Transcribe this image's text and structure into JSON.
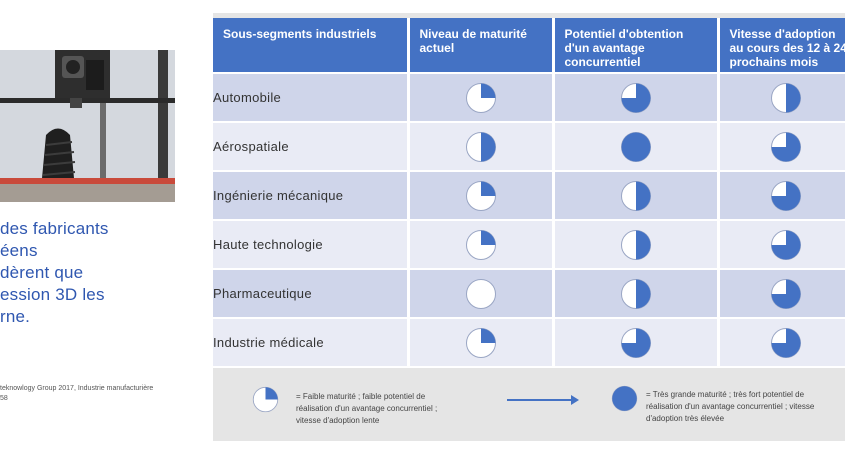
{
  "quote": {
    "lines": [
      "des fabricants",
      "éens",
      "dèrent que",
      "ession 3D les",
      "rne."
    ]
  },
  "source": {
    "lines": [
      "teknowlogy Group 2017, Industrie manufacturière",
      "58"
    ]
  },
  "table": {
    "headers": [
      {
        "lines": [
          "Sous-segments industriels"
        ]
      },
      {
        "lines": [
          "Niveau de maturité",
          "actuel"
        ]
      },
      {
        "lines": [
          "Potentiel d'obtention",
          "d'un avantage",
          "concurrentiel"
        ]
      },
      {
        "lines": [
          "Vitesse d'adoption",
          "au cours des 12 à 24",
          "prochains mois"
        ]
      }
    ],
    "rows": [
      {
        "label": "Automobile",
        "ratings": [
          0.25,
          0.75,
          0.5
        ]
      },
      {
        "label": "Aérospatiale",
        "ratings": [
          0.5,
          1.0,
          0.75
        ]
      },
      {
        "label": "Ingénierie mécanique",
        "ratings": [
          0.25,
          0.5,
          0.75
        ]
      },
      {
        "label": "Haute technologie",
        "ratings": [
          0.25,
          0.5,
          0.75
        ]
      },
      {
        "label": "Pharmaceutique",
        "ratings": [
          0.0,
          0.5,
          0.75
        ]
      },
      {
        "label": "Industrie médicale",
        "ratings": [
          0.25,
          0.75,
          0.75
        ]
      }
    ]
  },
  "legend": {
    "low": {
      "rating": 0.25,
      "lines": [
        "= Faible maturité ; faible potentiel de",
        "réalisation d'un avantage concurrentiel ;",
        "vitesse d'adoption lente"
      ]
    },
    "high": {
      "rating": 1.0,
      "lines": [
        "= Très grande maturité ; très fort potentiel de",
        "réalisation d'un avantage concurrentiel ; vitesse",
        "d'adoption très élevée"
      ]
    }
  },
  "colors": {
    "header_bg": "#4472c4",
    "row_odd": "#cfd5ea",
    "row_even": "#e9ebf5",
    "harvey_fill": "#4472c4",
    "quote_text": "#2f57b0"
  },
  "icons": {
    "rating": "harvey-ball-icon",
    "arrow": "arrow-right-icon",
    "photo": "3d-printer-photo"
  }
}
